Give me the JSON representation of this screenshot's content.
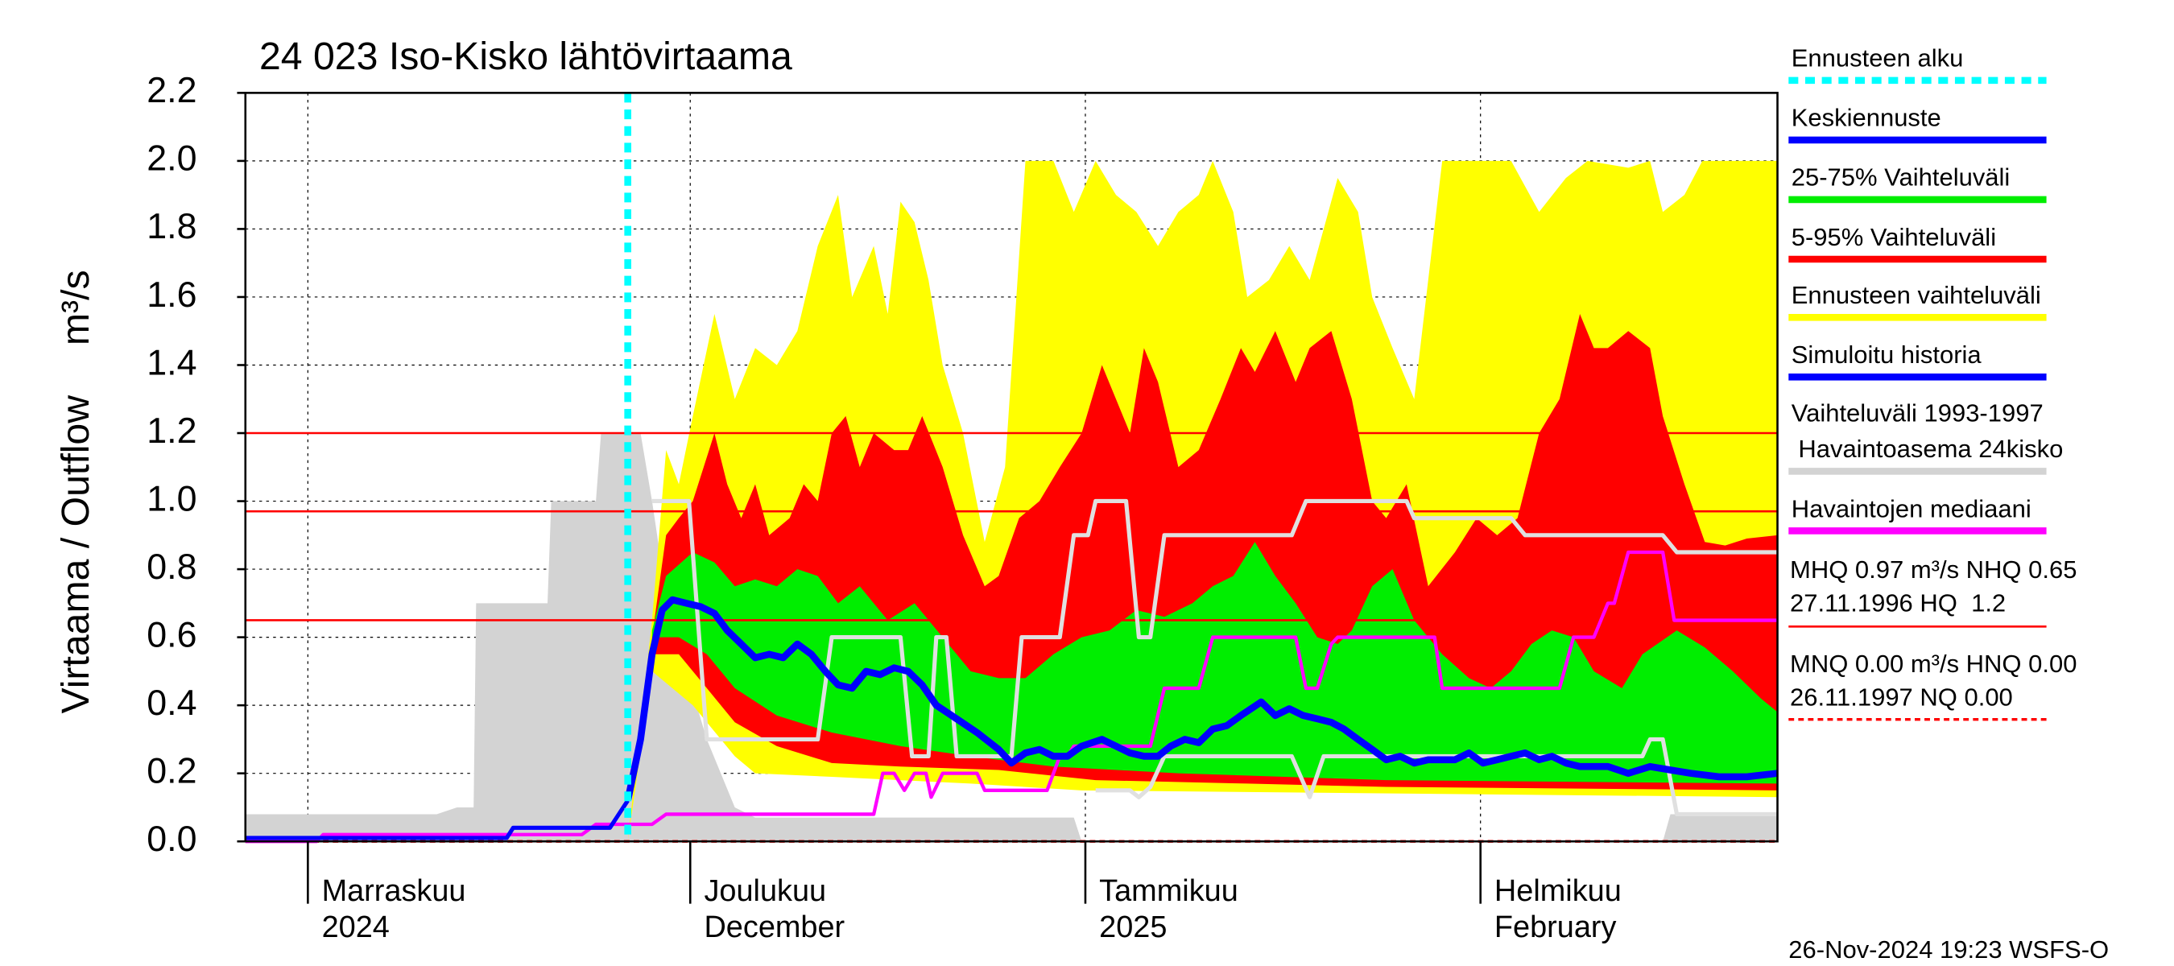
{
  "chart_data": {
    "type": "line",
    "title": "24 023 Iso-Kisko lähtövirtaama",
    "y_label": "Virtaama / Outflow",
    "y_unit": "m³/s",
    "xlim": [
      -4.9,
      115.3
    ],
    "xticks": [
      {
        "value": 0,
        "label": "Marraskuu"
      },
      {
        "value": 30,
        "label": "Joulukuu"
      },
      {
        "value": 61,
        "label": "Tammikuu"
      },
      {
        "value": 92,
        "label": "Helmikuu"
      }
    ],
    "xticks_second_line": [
      "2024",
      "December",
      "2025",
      "February"
    ],
    "ylim": [
      0,
      2.2
    ],
    "yticks": [
      {
        "value": 0,
        "label": "0.0"
      },
      0.2,
      0.4,
      0.6,
      0.8,
      {
        "value": 1,
        "label": "1.0"
      },
      1.2,
      1.4,
      1.6,
      1.8,
      {
        "value": 2,
        "label": "2.0"
      },
      2.2
    ],
    "grid": true,
    "forecast_start": {
      "name": "Ennusteen alku",
      "x": 25.1,
      "color": "#00ffff"
    },
    "hlines": [
      {
        "value": 1.2,
        "color": "#ff0000"
      },
      {
        "value": 0.97,
        "color": "#ff0000"
      },
      {
        "value": 0.65,
        "color": "#ff0000"
      },
      {
        "value": 0,
        "color": "#ff0000",
        "dashed": true
      }
    ],
    "bands": [
      {
        "name": "Vaihteluväli 1993-1997",
        "subname": " Havaintoasema 24kisko",
        "color": "#d3d3d3",
        "upper": {
          "x": [
            -4.9,
            10.1,
            11.7,
            13.0,
            13.2,
            18.8,
            19.1,
            22.6,
            23.0,
            26.1,
            27.0,
            27.8,
            28.6,
            29.7,
            31.3,
            33.5,
            35.1,
            60.1,
            60.7,
            106.3,
            106.9,
            115.3
          ],
          "values": [
            0.08,
            0.08,
            0.1,
            0.1,
            0.7,
            0.7,
            1.0,
            1.0,
            1.2,
            1.2,
            1.0,
            0.8,
            0.6,
            0.5,
            0.3,
            0.1,
            0.07,
            0.07,
            0,
            0,
            0.08,
            0.08
          ]
        },
        "lower": {
          "x": [
            -4.9,
            115.3
          ],
          "values": [
            0,
            0
          ]
        }
      },
      {
        "name": "Ennusteen vaihteluväli",
        "color": "#ffff00",
        "upper": {
          "x": [
            25.1,
            27.0,
            28.1,
            29.1,
            30.2,
            31.9,
            33.5,
            35.1,
            36.8,
            38.4,
            40.0,
            41.6,
            42.7,
            44.4,
            45.5,
            46.5,
            47.6,
            48.7,
            49.8,
            51.4,
            53.1,
            54.7,
            56.3,
            58.5,
            60.1,
            61.8,
            63.4,
            65.0,
            66.7,
            68.3,
            69.9,
            71.0,
            72.6,
            73.7,
            75.4,
            77.0,
            78.6,
            80.8,
            82.4,
            83.5,
            85.1,
            86.8,
            89.0,
            94.4,
            96.6,
            98.7,
            100.4,
            103.6,
            105.3,
            106.3,
            108.0,
            109.4,
            115.3
          ],
          "values": [
            0,
            0.65,
            1.15,
            1.05,
            1.25,
            1.55,
            1.3,
            1.45,
            1.4,
            1.5,
            1.75,
            1.9,
            1.6,
            1.75,
            1.55,
            1.88,
            1.82,
            1.65,
            1.4,
            1.2,
            0.88,
            1.1,
            2.0,
            2.0,
            1.85,
            2.0,
            1.9,
            1.85,
            1.75,
            1.85,
            1.9,
            2.0,
            1.85,
            1.6,
            1.65,
            1.75,
            1.65,
            1.95,
            1.85,
            1.6,
            1.45,
            1.3,
            2.0,
            2.0,
            1.85,
            1.95,
            2.0,
            1.98,
            2.0,
            1.85,
            1.9,
            2.0,
            2.0
          ]
        },
        "lower": {
          "x": [
            25.1,
            27.0,
            30.2,
            33.5,
            35.1,
            41.1,
            52.0,
            60.7,
            115.3
          ],
          "values": [
            0,
            0.5,
            0.4,
            0.25,
            0.2,
            0.19,
            0.17,
            0.15,
            0.13
          ]
        }
      },
      {
        "name": "5-95% Vaihteluväli",
        "color": "#ff0000",
        "upper": {
          "x": [
            27.0,
            28.1,
            29.1,
            30.2,
            31.9,
            32.9,
            34.0,
            35.1,
            36.2,
            37.8,
            38.9,
            40.0,
            41.1,
            42.2,
            43.3,
            44.4,
            46.0,
            47.1,
            48.2,
            49.8,
            51.4,
            53.1,
            54.2,
            55.8,
            57.4,
            59.0,
            60.7,
            62.3,
            63.4,
            64.5,
            65.6,
            66.7,
            68.3,
            69.9,
            71.6,
            73.2,
            74.3,
            75.9,
            77.5,
            78.6,
            80.3,
            81.9,
            83.5,
            84.6,
            86.2,
            87.9,
            90.0,
            91.7,
            93.3,
            94.9,
            96.6,
            98.2,
            99.8,
            100.9,
            102.0,
            103.6,
            105.3,
            106.3,
            108.0,
            109.6,
            111.2,
            112.9,
            115.3
          ],
          "values": [
            0.6,
            0.9,
            0.95,
            1.0,
            1.2,
            1.05,
            0.95,
            1.05,
            0.9,
            0.95,
            1.05,
            1.0,
            1.2,
            1.25,
            1.1,
            1.2,
            1.15,
            1.15,
            1.25,
            1.1,
            0.9,
            0.75,
            0.78,
            0.95,
            1.0,
            1.1,
            1.2,
            1.4,
            1.3,
            1.2,
            1.45,
            1.35,
            1.1,
            1.15,
            1.3,
            1.45,
            1.38,
            1.5,
            1.35,
            1.45,
            1.5,
            1.3,
            1.0,
            0.95,
            1.05,
            0.75,
            0.85,
            0.95,
            0.9,
            0.95,
            1.2,
            1.3,
            1.55,
            1.45,
            1.45,
            1.5,
            1.45,
            1.25,
            1.05,
            0.88,
            0.87,
            0.89,
            0.9
          ]
        },
        "lower": {
          "x": [
            27.0,
            29.1,
            31.3,
            33.5,
            36.8,
            41.1,
            46.5,
            54.2,
            61.8,
            73.7,
            84.6,
            115.3
          ],
          "values": [
            0.55,
            0.55,
            0.45,
            0.35,
            0.28,
            0.23,
            0.22,
            0.21,
            0.18,
            0.17,
            0.16,
            0.15
          ]
        }
      },
      {
        "name": "25-75% Vaihteluväli",
        "color": "#00ee00",
        "upper": {
          "x": [
            27.0,
            28.1,
            30.2,
            31.9,
            33.5,
            35.1,
            36.8,
            38.4,
            40.0,
            41.6,
            43.3,
            45.5,
            47.6,
            49.8,
            52.0,
            54.2,
            56.3,
            58.5,
            60.7,
            62.9,
            65.0,
            67.2,
            69.4,
            71.0,
            72.6,
            74.3,
            75.9,
            77.5,
            79.2,
            80.8,
            81.9,
            83.5,
            85.1,
            86.8,
            89.0,
            91.1,
            92.8,
            94.4,
            96.0,
            97.6,
            99.3,
            100.9,
            103.1,
            104.7,
            107.4,
            109.6,
            111.8,
            114.0,
            115.3
          ],
          "values": [
            0.62,
            0.78,
            0.85,
            0.82,
            0.75,
            0.77,
            0.75,
            0.8,
            0.78,
            0.7,
            0.75,
            0.65,
            0.7,
            0.6,
            0.5,
            0.48,
            0.48,
            0.55,
            0.6,
            0.62,
            0.68,
            0.66,
            0.7,
            0.75,
            0.78,
            0.88,
            0.78,
            0.7,
            0.6,
            0.58,
            0.62,
            0.75,
            0.8,
            0.65,
            0.55,
            0.48,
            0.45,
            0.5,
            0.58,
            0.62,
            0.6,
            0.5,
            0.45,
            0.55,
            0.62,
            0.57,
            0.5,
            0.42,
            0.38
          ]
        },
        "lower": {
          "x": [
            27.0,
            29.1,
            31.3,
            33.5,
            36.8,
            41.1,
            46.5,
            52.0,
            58.5,
            68.3,
            84.6,
            115.3
          ],
          "values": [
            0.6,
            0.6,
            0.55,
            0.45,
            0.37,
            0.32,
            0.28,
            0.25,
            0.22,
            0.2,
            0.18,
            0.17
          ]
        }
      }
    ],
    "series": [
      {
        "name": "Keskiennuste",
        "color": "#0000ff",
        "x": [
          25.1,
          26.1,
          27.0,
          27.8,
          28.6,
          29.7,
          30.8,
          31.9,
          32.9,
          34.0,
          35.1,
          36.2,
          37.3,
          38.4,
          39.5,
          40.6,
          41.6,
          42.7,
          43.8,
          44.9,
          46.0,
          47.1,
          48.2,
          49.3,
          50.9,
          52.5,
          54.2,
          55.2,
          56.3,
          57.4,
          58.5,
          59.6,
          60.7,
          62.3,
          63.4,
          64.5,
          65.6,
          66.7,
          67.7,
          68.8,
          69.9,
          71.0,
          72.1,
          73.2,
          74.8,
          75.9,
          77.0,
          78.1,
          79.2,
          80.3,
          81.3,
          82.4,
          83.5,
          84.6,
          85.7,
          86.8,
          87.9,
          89.0,
          90.0,
          91.1,
          92.2,
          93.3,
          94.4,
          95.5,
          96.6,
          97.6,
          98.7,
          99.8,
          102.0,
          103.6,
          105.3,
          106.9,
          108.5,
          110.7,
          112.9,
          115.3
        ],
        "values": [
          0.12,
          0.3,
          0.55,
          0.68,
          0.71,
          0.7,
          0.69,
          0.67,
          0.62,
          0.58,
          0.54,
          0.55,
          0.54,
          0.58,
          0.55,
          0.5,
          0.46,
          0.45,
          0.5,
          0.49,
          0.51,
          0.5,
          0.46,
          0.4,
          0.36,
          0.32,
          0.27,
          0.23,
          0.26,
          0.27,
          0.25,
          0.25,
          0.28,
          0.3,
          0.28,
          0.26,
          0.25,
          0.25,
          0.28,
          0.3,
          0.29,
          0.33,
          0.34,
          0.37,
          0.41,
          0.37,
          0.39,
          0.37,
          0.36,
          0.35,
          0.33,
          0.3,
          0.27,
          0.24,
          0.25,
          0.23,
          0.24,
          0.24,
          0.24,
          0.26,
          0.23,
          0.24,
          0.25,
          0.26,
          0.24,
          0.25,
          0.23,
          0.22,
          0.22,
          0.2,
          0.22,
          0.21,
          0.2,
          0.19,
          0.19,
          0.2
        ]
      },
      {
        "name": "Simuloitu historia",
        "color": "#0000ff",
        "x": [
          -4.9,
          0.9,
          15.6,
          16.1,
          23.7,
          25.1
        ],
        "values": [
          0.01,
          0.01,
          0.01,
          0.04,
          0.04,
          0.12
        ]
      },
      {
        "name": "Havaintojen mediaani",
        "color": "#ff00ff",
        "x": [
          -4.9,
          0.7,
          1.2,
          21.5,
          22.6,
          27.0,
          28.1,
          29.1,
          44.4,
          45.1,
          46.0,
          46.8,
          47.6,
          48.5,
          48.9,
          49.8,
          52.5,
          53.1,
          58.0,
          59.0,
          59.6,
          60.1,
          66.1,
          67.2,
          69.9,
          71.0,
          77.5,
          78.3,
          79.2,
          80.3,
          80.8,
          88.4,
          89.0,
          98.2,
          99.3,
          100.9,
          102.0,
          102.5,
          103.6,
          106.3,
          107.2,
          115.3
        ],
        "values": [
          0,
          0,
          0.02,
          0.02,
          0.05,
          0.05,
          0.08,
          0.08,
          0.08,
          0.2,
          0.2,
          0.15,
          0.2,
          0.2,
          0.13,
          0.2,
          0.2,
          0.15,
          0.15,
          0.25,
          0.25,
          0.28,
          0.28,
          0.45,
          0.45,
          0.6,
          0.6,
          0.45,
          0.45,
          0.58,
          0.6,
          0.6,
          0.45,
          0.45,
          0.6,
          0.6,
          0.7,
          0.7,
          0.85,
          0.85,
          0.65,
          0.65
        ]
      },
      {
        "color": "#e0e0e0",
        "x": [
          27.0,
          29.9,
          31.3,
          40.0,
          41.1,
          46.5,
          47.4,
          48.7,
          49.3,
          50.1,
          50.9,
          55.2,
          56.0,
          59.0,
          60.1,
          61.2,
          61.8,
          64.2,
          65.2,
          66.1,
          67.2,
          77.2,
          78.3,
          86.2,
          86.8,
          94.4,
          95.5,
          106.3,
          107.4,
          115.3
        ],
        "values": [
          1.0,
          1.0,
          0.3,
          0.3,
          0.6,
          0.6,
          0.25,
          0.25,
          0.6,
          0.6,
          0.25,
          0.25,
          0.6,
          0.6,
          0.9,
          0.9,
          1.0,
          1.0,
          0.6,
          0.6,
          0.9,
          0.9,
          1.0,
          1.0,
          0.95,
          0.95,
          0.9,
          0.9,
          0.85,
          0.85
        ]
      },
      {
        "color": "#e0e0e0",
        "x": [
          61.8,
          64.5,
          65.2,
          66.1,
          67.2,
          77.2,
          78.6,
          79.7,
          104.7,
          105.3,
          106.3,
          107.4,
          115.3
        ],
        "values": [
          0.15,
          0.15,
          0.13,
          0.16,
          0.25,
          0.25,
          0.13,
          0.25,
          0.25,
          0.3,
          0.3,
          0.08,
          0.08
        ]
      }
    ],
    "statistics": [
      "MHQ 0.97 m³/s NHQ 0.65",
      "27.11.1996 HQ  1.2",
      "MNQ 0.00 m³/s HNQ 0.00",
      "26.11.1997 NQ 0.00"
    ],
    "footer": "26-Nov-2024 19:23 WSFS-O"
  }
}
